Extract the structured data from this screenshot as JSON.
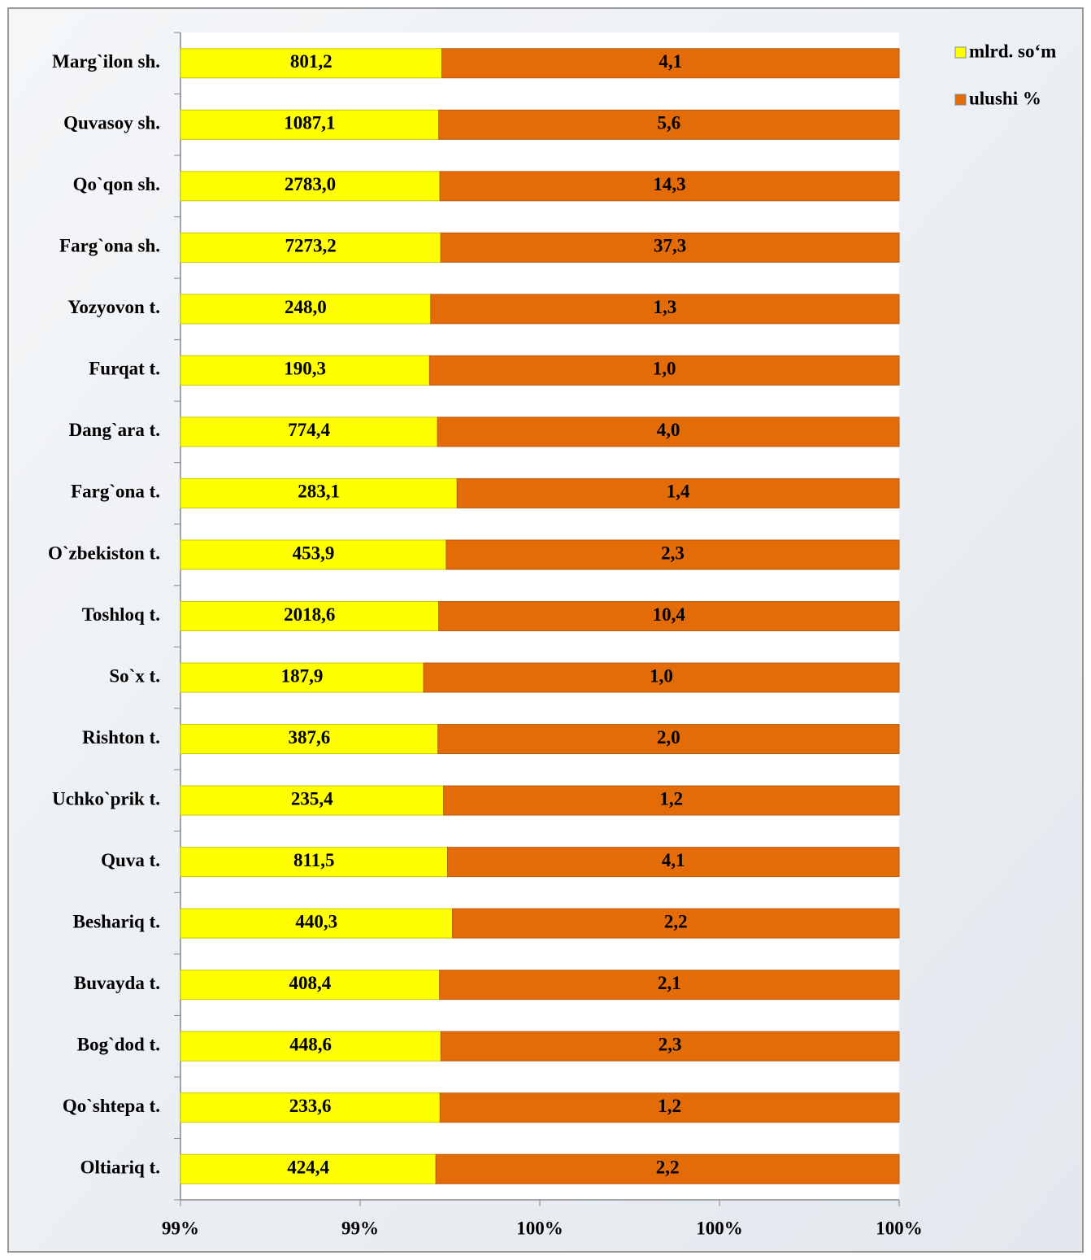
{
  "chart_data": {
    "type": "bar",
    "orientation": "horizontal",
    "percent_stacked": true,
    "categories": [
      "Marg`ilon sh.",
      "Quvasoy sh.",
      "Qo`qon sh.",
      "Farg`ona sh.",
      "Yozyovon t.",
      "Furqat t.",
      "Dang`ara t.",
      "Farg`ona t.",
      "O`zbekiston t.",
      "Toshloq t.",
      "So`x t.",
      "Rishton t.",
      "Uchko`prik t.",
      "Quva t.",
      "Beshariq t.",
      "Buvayda t.",
      "Bog`dod t.",
      "Qo`shtepa t.",
      "Oltiariq t."
    ],
    "series": [
      {
        "name": "mlrd. so‘m",
        "color": "#ffff00",
        "values": [
          801.2,
          1087.1,
          2783.0,
          7273.2,
          248.0,
          190.3,
          774.4,
          283.1,
          453.9,
          2018.6,
          187.9,
          387.6,
          235.4,
          811.5,
          440.3,
          408.4,
          448.6,
          233.6,
          424.4
        ],
        "value_labels": [
          "801,2",
          "1087,1",
          "2783,0",
          "7273,2",
          "248,0",
          "190,3",
          "774,4",
          "283,1",
          "453,9",
          "2018,6",
          "187,9",
          "387,6",
          "235,4",
          "811,5",
          "440,3",
          "408,4",
          "448,6",
          "233,6",
          "424,4"
        ]
      },
      {
        "name": "ulushi %",
        "color": "#e36c09",
        "values": [
          4.1,
          5.6,
          14.3,
          37.3,
          1.3,
          1.0,
          4.0,
          1.4,
          2.3,
          10.4,
          1.0,
          2.0,
          1.2,
          4.1,
          2.2,
          2.1,
          2.3,
          1.2,
          2.2
        ],
        "value_labels": [
          "4,1",
          "5,6",
          "14,3",
          "37,3",
          "1,3",
          "1,0",
          "4,0",
          "1,4",
          "2,3",
          "10,4",
          "1,0",
          "2,0",
          "1,2",
          "4,1",
          "2,2",
          "2,1",
          "2,3",
          "1,2",
          "2,2"
        ]
      }
    ],
    "xlim": [
      0.992,
      1.0
    ],
    "xticks": [
      {
        "value": 0.992,
        "label": "99%"
      },
      {
        "value": 0.994,
        "label": "99%"
      },
      {
        "value": 0.996,
        "label": "100%"
      },
      {
        "value": 0.998,
        "label": "100%"
      },
      {
        "value": 1.0,
        "label": "100%"
      }
    ],
    "legend": "top-right"
  }
}
